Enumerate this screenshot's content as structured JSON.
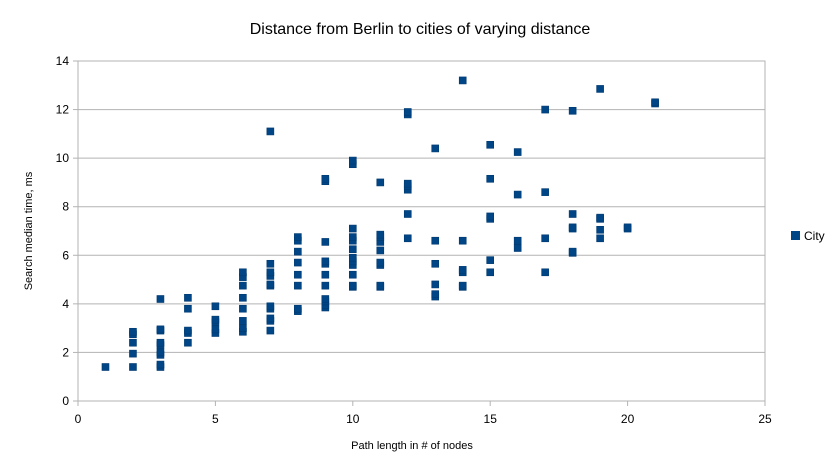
{
  "chart_data": {
    "type": "scatter",
    "title": "Distance from Berlin to cities of varying distance",
    "xlabel": "Path length in # of nodes",
    "ylabel": "Search median time, ms",
    "xlim": [
      0,
      25
    ],
    "ylim": [
      0,
      14
    ],
    "x_ticks": [
      0,
      5,
      10,
      15,
      20,
      25
    ],
    "y_ticks": [
      0,
      2,
      4,
      6,
      8,
      10,
      12,
      14
    ],
    "x_tick_labels": [
      "0",
      "5",
      "10",
      "15",
      "20",
      "25"
    ],
    "y_tick_labels": [
      "0",
      "2",
      "4",
      "6",
      "8",
      "10",
      "12",
      "14"
    ],
    "grid": "horizontal",
    "legend_position": "right",
    "series": [
      {
        "name": "City",
        "color": "#004586",
        "marker": "square",
        "points": [
          [
            1,
            1.4
          ],
          [
            2,
            1.4
          ],
          [
            2,
            1.95
          ],
          [
            2,
            2.4
          ],
          [
            2,
            2.75
          ],
          [
            2,
            2.85
          ],
          [
            3,
            1.4
          ],
          [
            3,
            1.5
          ],
          [
            3,
            1.9
          ],
          [
            3,
            2.0
          ],
          [
            3,
            2.3
          ],
          [
            3,
            2.4
          ],
          [
            3,
            2.9
          ],
          [
            3,
            2.95
          ],
          [
            3,
            4.2
          ],
          [
            4,
            2.4
          ],
          [
            4,
            2.8
          ],
          [
            4,
            2.9
          ],
          [
            4,
            3.8
          ],
          [
            4,
            4.25
          ],
          [
            5,
            2.8
          ],
          [
            5,
            2.95
          ],
          [
            5,
            3.25
          ],
          [
            5,
            3.35
          ],
          [
            5,
            3.9
          ],
          [
            6,
            2.85
          ],
          [
            6,
            3.0
          ],
          [
            6,
            3.3
          ],
          [
            6,
            3.8
          ],
          [
            6,
            4.25
          ],
          [
            6,
            4.75
          ],
          [
            6,
            5.1
          ],
          [
            6,
            5.3
          ],
          [
            7,
            2.9
          ],
          [
            7,
            3.3
          ],
          [
            7,
            3.4
          ],
          [
            7,
            3.8
          ],
          [
            7,
            3.9
          ],
          [
            7,
            4.75
          ],
          [
            7,
            4.8
          ],
          [
            7,
            5.15
          ],
          [
            7,
            5.3
          ],
          [
            7,
            5.65
          ],
          [
            7,
            11.1
          ],
          [
            8,
            3.7
          ],
          [
            8,
            3.8
          ],
          [
            8,
            4.75
          ],
          [
            8,
            5.2
          ],
          [
            8,
            5.7
          ],
          [
            8,
            6.15
          ],
          [
            8,
            6.6
          ],
          [
            8,
            6.75
          ],
          [
            9,
            3.85
          ],
          [
            9,
            3.95
          ],
          [
            9,
            4.1
          ],
          [
            9,
            4.2
          ],
          [
            9,
            4.75
          ],
          [
            9,
            5.2
          ],
          [
            9,
            5.65
          ],
          [
            9,
            5.75
          ],
          [
            9,
            6.55
          ],
          [
            9,
            9.05
          ],
          [
            9,
            9.15
          ],
          [
            10,
            4.7
          ],
          [
            10,
            4.75
          ],
          [
            10,
            5.2
          ],
          [
            10,
            5.6
          ],
          [
            10,
            5.75
          ],
          [
            10,
            5.9
          ],
          [
            10,
            6.25
          ],
          [
            10,
            6.6
          ],
          [
            10,
            6.75
          ],
          [
            10,
            7.1
          ],
          [
            10,
            9.75
          ],
          [
            10,
            9.9
          ],
          [
            11,
            4.7
          ],
          [
            11,
            4.75
          ],
          [
            11,
            5.6
          ],
          [
            11,
            5.7
          ],
          [
            11,
            6.2
          ],
          [
            11,
            6.55
          ],
          [
            11,
            6.75
          ],
          [
            11,
            6.85
          ],
          [
            11,
            9.0
          ],
          [
            12,
            6.7
          ],
          [
            12,
            7.7
          ],
          [
            12,
            8.7
          ],
          [
            12,
            8.85
          ],
          [
            12,
            8.95
          ],
          [
            12,
            11.8
          ],
          [
            12,
            11.9
          ],
          [
            13,
            4.3
          ],
          [
            13,
            4.4
          ],
          [
            13,
            4.8
          ],
          [
            13,
            5.65
          ],
          [
            13,
            6.6
          ],
          [
            13,
            10.4
          ],
          [
            14,
            4.7
          ],
          [
            14,
            4.75
          ],
          [
            14,
            5.3
          ],
          [
            14,
            5.4
          ],
          [
            14,
            6.6
          ],
          [
            14,
            13.2
          ],
          [
            15,
            5.3
          ],
          [
            15,
            5.8
          ],
          [
            15,
            7.5
          ],
          [
            15,
            7.6
          ],
          [
            15,
            9.15
          ],
          [
            15,
            10.55
          ],
          [
            16,
            6.3
          ],
          [
            16,
            6.6
          ],
          [
            16,
            8.5
          ],
          [
            16,
            10.25
          ],
          [
            17,
            5.3
          ],
          [
            17,
            6.7
          ],
          [
            17,
            8.6
          ],
          [
            17,
            12.0
          ],
          [
            18,
            6.1
          ],
          [
            18,
            6.15
          ],
          [
            18,
            7.1
          ],
          [
            18,
            7.15
          ],
          [
            18,
            7.7
          ],
          [
            18,
            11.95
          ],
          [
            19,
            6.7
          ],
          [
            19,
            7.05
          ],
          [
            19,
            7.5
          ],
          [
            19,
            7.55
          ],
          [
            19,
            12.85
          ],
          [
            20,
            7.1
          ],
          [
            20,
            7.15
          ],
          [
            21,
            12.25
          ],
          [
            21,
            12.3
          ]
        ]
      }
    ]
  }
}
